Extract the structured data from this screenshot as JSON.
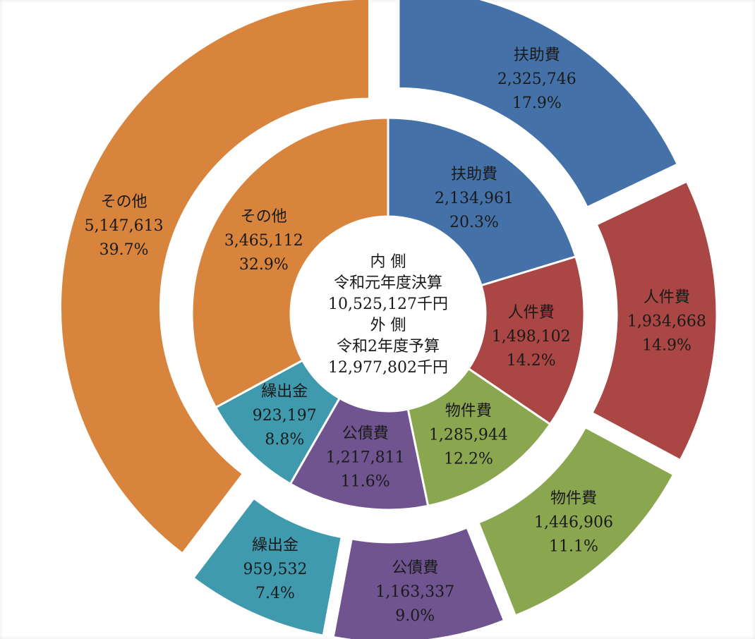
{
  "chart_data": {
    "type": "pie",
    "center_text": [
      "内 側",
      "令和元年度決算",
      "10,525,127千円",
      "外 側",
      "令和2年度予算",
      "12,977,802千円"
    ],
    "series": [
      {
        "ring": "inner",
        "categories": [
          "扶助費",
          "人件費",
          "物件費",
          "公債費",
          "繰出金",
          "その他"
        ],
        "values": [
          2134961,
          1498102,
          1285944,
          1217811,
          923197,
          3465112
        ],
        "value_labels": [
          "2,134,961",
          "1,498,102",
          "1,285,944",
          "1,217,811",
          "923,197",
          "3,465,112"
        ],
        "percent_labels": [
          "20.3%",
          "14.2%",
          "12.2%",
          "11.6%",
          "8.8%",
          "32.9%"
        ]
      },
      {
        "ring": "outer",
        "categories": [
          "扶助費",
          "人件費",
          "物件費",
          "公債費",
          "繰出金",
          "その他"
        ],
        "values": [
          2325746,
          1934668,
          1446906,
          1163337,
          959532,
          5147613
        ],
        "value_labels": [
          "2,325,746",
          "1,934,668",
          "1,446,906",
          "1,163,337",
          "959,532",
          "5,147,613"
        ],
        "percent_labels": [
          "17.9%",
          "14.9%",
          "11.1%",
          "9.0%",
          "7.4%",
          "39.7%"
        ]
      }
    ],
    "colors": [
      "#4472a8",
      "#aa4644",
      "#8aa64f",
      "#6f548f",
      "#3f9aae",
      "#d8843d"
    ],
    "legend": "none"
  }
}
